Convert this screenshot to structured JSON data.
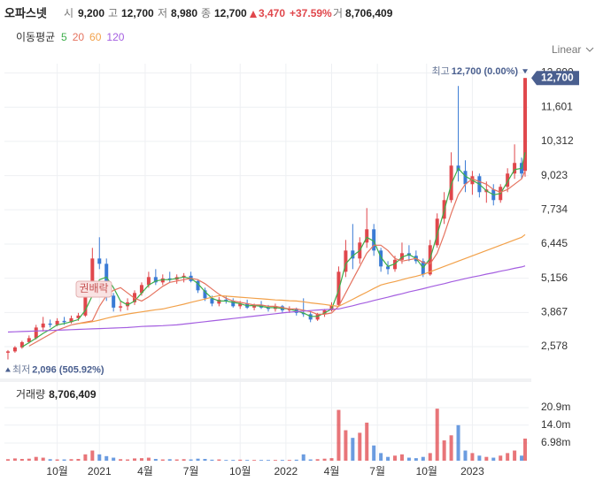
{
  "header": {
    "name": "오파스넷",
    "open_word": "시",
    "open": "9,200",
    "high_word": "고",
    "high": "12,700",
    "low_word": "저",
    "low": "8,980",
    "close_word": "종",
    "close": "12,700",
    "change": "3,470",
    "change_pct": "+37.59%",
    "volume_word": "거",
    "volume": "8,706,409"
  },
  "chart_data": [
    {
      "type": "candlestick",
      "scale": "Linear",
      "legend_title": "이동평균",
      "grid": true,
      "up_color": "#e0474c",
      "down_color": "#3a7bd5",
      "max_label": {
        "word": "최고",
        "value": "12,700 (0.00%)"
      },
      "min_label": {
        "word": "최저",
        "value": "2,096 (505.92%)"
      },
      "annotation": "권배락",
      "last_label": "12,700",
      "x": [
        0,
        2,
        4,
        6,
        8,
        10,
        12,
        14,
        16,
        18,
        20,
        22,
        24,
        26,
        28,
        30,
        32,
        34,
        36,
        38,
        40,
        42,
        44,
        46,
        48,
        50,
        52,
        54,
        56,
        58,
        60,
        62,
        64,
        66,
        68,
        70,
        72,
        74,
        76,
        78,
        80,
        82,
        84,
        86,
        88,
        90,
        92,
        94,
        96,
        98,
        100,
        102,
        104,
        106,
        108,
        110,
        112,
        114,
        116,
        118,
        120,
        122,
        124,
        126,
        128,
        130,
        132,
        134,
        136,
        138,
        140,
        142,
        144,
        146,
        147
      ],
      "open": [
        2350,
        2400,
        2550,
        2750,
        2900,
        3300,
        3450,
        3400,
        3550,
        3500,
        3650,
        3750,
        4700,
        5900,
        5700,
        4500,
        4050,
        4100,
        4250,
        4600,
        4900,
        5200,
        5000,
        5150,
        5100,
        5200,
        5250,
        5050,
        4700,
        4400,
        4200,
        4350,
        4300,
        4100,
        4200,
        4050,
        4150,
        4050,
        4000,
        4100,
        3950,
        4000,
        3850,
        3800,
        3600,
        3800,
        3950,
        4150,
        5400,
        6200,
        5900,
        6500,
        7000,
        6200,
        5600,
        5500,
        5850,
        6100,
        6000,
        5800,
        5300,
        6400,
        7400,
        8100,
        9400,
        9200,
        8700,
        9000,
        8400,
        8500,
        8100,
        8600,
        9100,
        9500,
        9200
      ],
      "high": [
        2450,
        2600,
        2800,
        3000,
        3400,
        3700,
        3600,
        3650,
        3700,
        3750,
        3850,
        5000,
        6300,
        6700,
        5900,
        4600,
        4300,
        4400,
        4700,
        5000,
        5400,
        5500,
        5300,
        5400,
        5300,
        5350,
        5400,
        5100,
        4800,
        4500,
        4450,
        4500,
        4400,
        4300,
        4350,
        4200,
        4300,
        4150,
        4200,
        4150,
        4100,
        4050,
        4400,
        3900,
        3850,
        4000,
        4250,
        5600,
        6600,
        7200,
        6700,
        7800,
        7200,
        6300,
        5800,
        6000,
        6500,
        6400,
        6200,
        5900,
        6600,
        7600,
        8400,
        9900,
        12400,
        9600,
        9200,
        9100,
        8800,
        8700,
        8700,
        9300,
        10200,
        9700,
        12700
      ],
      "low": [
        2096,
        2350,
        2500,
        2700,
        2850,
        3150,
        3300,
        3350,
        3400,
        3450,
        3550,
        3700,
        4600,
        5500,
        4300,
        3900,
        3900,
        3950,
        4150,
        4500,
        4800,
        4900,
        4900,
        5000,
        4950,
        5000,
        5000,
        4600,
        4300,
        4100,
        4100,
        4200,
        4050,
        4000,
        4000,
        3950,
        4000,
        3900,
        3900,
        3850,
        3850,
        3750,
        3700,
        3500,
        3550,
        3700,
        3900,
        4100,
        5200,
        5500,
        5700,
        6300,
        6000,
        5400,
        5300,
        5400,
        5700,
        5800,
        5700,
        5200,
        5250,
        6300,
        7200,
        8000,
        8800,
        8400,
        8300,
        8200,
        8000,
        7900,
        8000,
        8400,
        8900,
        8900,
        8980
      ],
      "close": [
        2400,
        2550,
        2750,
        2900,
        3300,
        3450,
        3400,
        3550,
        3500,
        3650,
        3750,
        4700,
        5900,
        5700,
        4500,
        4050,
        4100,
        4250,
        4600,
        4900,
        5200,
        5000,
        5150,
        5100,
        5200,
        5250,
        5050,
        4700,
        4400,
        4200,
        4350,
        4300,
        4100,
        4200,
        4050,
        4150,
        4050,
        4000,
        4100,
        3950,
        4000,
        3850,
        3800,
        3600,
        3800,
        3950,
        4150,
        5400,
        6200,
        5900,
        6500,
        7000,
        6200,
        5600,
        5500,
        5850,
        6100,
        6000,
        5800,
        5300,
        6400,
        7400,
        8100,
        9400,
        9200,
        8700,
        9000,
        8400,
        8500,
        8100,
        8600,
        9100,
        9500,
        9100,
        12700
      ],
      "series": [
        {
          "name": "5",
          "color": "#3cae4a",
          "values": [
            null,
            null,
            2570,
            2730,
            2900,
            3080,
            3230,
            3400,
            3450,
            3520,
            3600,
            3950,
            4500,
            5100,
            5200,
            4800,
            4300,
            4150,
            4300,
            4600,
            4900,
            5050,
            5100,
            5100,
            5150,
            5200,
            5150,
            4950,
            4650,
            4400,
            4300,
            4300,
            4250,
            4200,
            4120,
            4130,
            4100,
            4050,
            4050,
            4020,
            4000,
            3920,
            3850,
            3720,
            3720,
            3850,
            4000,
            4700,
            5700,
            6000,
            6200,
            6700,
            6550,
            5950,
            5600,
            5700,
            5950,
            6050,
            5900,
            5550,
            5900,
            6800,
            7700,
            8700,
            9300,
            9000,
            8850,
            8700,
            8450,
            8300,
            8350,
            8800,
            9250,
            9300,
            9900
          ]
        },
        {
          "name": "20",
          "color": "#e5735f",
          "values": [
            null,
            null,
            null,
            2600,
            2750,
            2900,
            3050,
            3200,
            3300,
            3400,
            3450,
            3500,
            3550,
            4100,
            4500,
            4700,
            4800,
            4600,
            4400,
            4300,
            4450,
            4650,
            4850,
            5000,
            5050,
            5100,
            5150,
            5100,
            4950,
            4750,
            4550,
            4400,
            4300,
            4250,
            4200,
            4150,
            4150,
            4100,
            4100,
            4050,
            4000,
            4000,
            3950,
            3900,
            3800,
            3800,
            3850,
            4100,
            4600,
            5100,
            5600,
            6100,
            6400,
            6400,
            6200,
            5900,
            5800,
            5850,
            5900,
            5750,
            5700,
            6100,
            6800,
            7600,
            8300,
            8700,
            8900,
            8800,
            8700,
            8500,
            8400,
            8500,
            8700,
            8900,
            9200
          ]
        },
        {
          "name": "60",
          "color": "#f2a14a",
          "values": [
            null,
            null,
            null,
            null,
            null,
            null,
            null,
            null,
            null,
            null,
            3450,
            3480,
            3520,
            3580,
            3650,
            3710,
            3760,
            3810,
            3850,
            3890,
            3930,
            3970,
            4000,
            4060,
            4120,
            4180,
            4250,
            4310,
            4370,
            4440,
            4500,
            4480,
            4460,
            4440,
            4420,
            4400,
            4380,
            4360,
            4340,
            4330,
            4310,
            4300,
            4270,
            4230,
            4200,
            4170,
            4130,
            4100,
            4230,
            4360,
            4500,
            4630,
            4770,
            4900,
            4970,
            5030,
            5100,
            5170,
            5230,
            5300,
            5400,
            5500,
            5600,
            5700,
            5800,
            5900,
            6000,
            6100,
            6200,
            6300,
            6400,
            6500,
            6600,
            6700,
            6800
          ]
        },
        {
          "name": "120",
          "color": "#a45ee0",
          "values": [
            3130,
            3140,
            3150,
            3160,
            3170,
            3180,
            3190,
            3200,
            3210,
            3220,
            3230,
            3240,
            3250,
            3260,
            3270,
            3280,
            3290,
            3300,
            3320,
            3340,
            3350,
            3360,
            3370,
            3385,
            3400,
            3430,
            3460,
            3490,
            3520,
            3550,
            3580,
            3610,
            3640,
            3670,
            3700,
            3730,
            3760,
            3790,
            3820,
            3850,
            3880,
            3900,
            3920,
            3940,
            3960,
            3975,
            3990,
            4000,
            4060,
            4120,
            4190,
            4250,
            4320,
            4380,
            4440,
            4510,
            4570,
            4640,
            4700,
            4760,
            4830,
            4890,
            4950,
            5020,
            5080,
            5140,
            5200,
            5250,
            5310,
            5360,
            5420,
            5470,
            5530,
            5580,
            5620
          ]
        }
      ],
      "xlim": [
        -1,
        148
      ],
      "ylim": [
        1380,
        13240
      ],
      "xticks": [
        {
          "value": 14,
          "label": "10월"
        },
        {
          "value": 26,
          "label": "2021"
        },
        {
          "value": 39,
          "label": "4월"
        },
        {
          "value": 52,
          "label": "7월"
        },
        {
          "value": 66,
          "label": "10월"
        },
        {
          "value": 79,
          "label": "2022"
        },
        {
          "value": 92,
          "label": "4월"
        },
        {
          "value": 105,
          "label": "7월"
        },
        {
          "value": 119,
          "label": "10월"
        },
        {
          "value": 132,
          "label": "2023"
        }
      ],
      "yticks": [
        {
          "value": 2578,
          "label": "2,578"
        },
        {
          "value": 3867,
          "label": "3,867"
        },
        {
          "value": 5156,
          "label": "5,156"
        },
        {
          "value": 6445,
          "label": "6,445"
        },
        {
          "value": 7734,
          "label": "7,734"
        },
        {
          "value": 9023,
          "label": "9,023"
        },
        {
          "value": 10312,
          "label": "10,312"
        },
        {
          "value": 11601,
          "label": "11,601"
        },
        {
          "value": 12890,
          "label": "12,890"
        }
      ]
    },
    {
      "type": "bar",
      "title": "거래량",
      "last_label": "8,706,409",
      "values": [
        600000,
        900000,
        700000,
        800000,
        1500000,
        1200000,
        600000,
        500000,
        500000,
        600000,
        700000,
        2500000,
        4000000,
        2500000,
        1800000,
        1200000,
        600000,
        500000,
        900000,
        1000000,
        1200000,
        700000,
        500000,
        600000,
        500000,
        600000,
        500000,
        800000,
        700000,
        400000,
        500000,
        300000,
        300000,
        400000,
        300000,
        300000,
        300000,
        300000,
        300000,
        300000,
        300000,
        400000,
        2500000,
        500000,
        600000,
        800000,
        1000000,
        20000000,
        12000000,
        9000000,
        11000000,
        15000000,
        6000000,
        3000000,
        1500000,
        2000000,
        2500000,
        1200000,
        1000000,
        1500000,
        3000000,
        20500000,
        8000000,
        10000000,
        14000000,
        4000000,
        3000000,
        2000000,
        1500000,
        1200000,
        2000000,
        3000000,
        4000000,
        2000000,
        8706409
      ],
      "ylim": [
        0,
        31000000
      ],
      "yticks": [
        {
          "value": 6980000,
          "label": "6.98m"
        },
        {
          "value": 14000000,
          "label": "14.0m"
        },
        {
          "value": 20900000,
          "label": "20.9m"
        }
      ]
    }
  ]
}
